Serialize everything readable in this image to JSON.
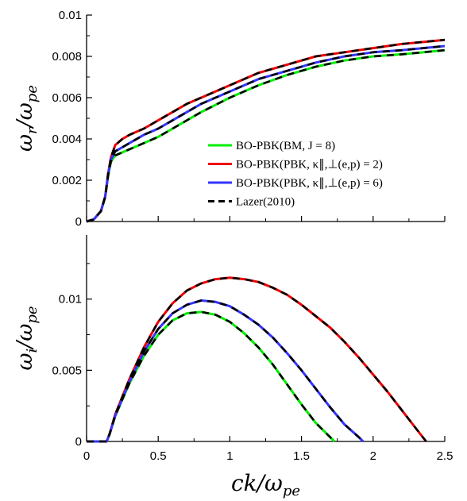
{
  "chart_data": [
    {
      "type": "line",
      "panel": "top",
      "title": "",
      "xlabel": "",
      "ylabel": "ωr/ωpe",
      "xlim": [
        0,
        2.5
      ],
      "ylim": [
        0,
        0.01
      ],
      "x_ticks": [
        0,
        0.5,
        1,
        1.5,
        2,
        2.5
      ],
      "y_ticks": [
        0,
        0.002,
        0.004,
        0.006,
        0.008,
        0.01
      ],
      "y_tick_labels": [
        "0",
        "0.002",
        "0.004",
        "0.006",
        "0.008",
        "0.01"
      ],
      "grid": false,
      "legend_position": "middle-right",
      "series": [
        {
          "name": "BO-PBK(BM, J = 8)",
          "color": "#00ee00",
          "x": [
            0,
            0.05,
            0.1,
            0.13,
            0.15,
            0.17,
            0.2,
            0.25,
            0.3,
            0.4,
            0.5,
            0.6,
            0.7,
            0.8,
            1.0,
            1.2,
            1.4,
            1.6,
            1.8,
            2.0,
            2.2,
            2.5
          ],
          "y": [
            0,
            0.0001,
            0.0005,
            0.0012,
            0.0022,
            0.0029,
            0.0032,
            0.00335,
            0.0035,
            0.0038,
            0.0041,
            0.0045,
            0.0049,
            0.0053,
            0.006,
            0.0066,
            0.0071,
            0.0075,
            0.0078,
            0.008,
            0.0081,
            0.0083
          ]
        },
        {
          "name": "BO-PBK(PBK, κ∥,⊥(e,p) = 2)",
          "color": "#ee0000",
          "x": [
            0,
            0.05,
            0.1,
            0.13,
            0.15,
            0.17,
            0.2,
            0.25,
            0.3,
            0.4,
            0.5,
            0.6,
            0.7,
            0.8,
            1.0,
            1.2,
            1.4,
            1.6,
            1.8,
            2.0,
            2.2,
            2.5
          ],
          "y": [
            0,
            0.0001,
            0.0005,
            0.0012,
            0.0023,
            0.0031,
            0.0037,
            0.004,
            0.0042,
            0.0045,
            0.0049,
            0.0053,
            0.0057,
            0.006,
            0.0066,
            0.0072,
            0.0076,
            0.008,
            0.0082,
            0.0084,
            0.0086,
            0.0088
          ]
        },
        {
          "name": "BO-PBK(PBK, κ∥,⊥(e,p) = 6)",
          "color": "#3333ff",
          "x": [
            0,
            0.05,
            0.1,
            0.13,
            0.15,
            0.17,
            0.2,
            0.25,
            0.3,
            0.4,
            0.5,
            0.6,
            0.7,
            0.8,
            1.0,
            1.2,
            1.4,
            1.6,
            1.8,
            2.0,
            2.2,
            2.5
          ],
          "y": [
            0,
            0.0001,
            0.0005,
            0.0012,
            0.00225,
            0.003,
            0.0034,
            0.0036,
            0.0038,
            0.0042,
            0.0045,
            0.0049,
            0.0053,
            0.0057,
            0.0063,
            0.0069,
            0.0073,
            0.0077,
            0.008,
            0.0082,
            0.0083,
            0.0085
          ]
        }
      ],
      "overlay": {
        "name": "Lazer(2010)",
        "color": "#000000",
        "style": "dashed"
      }
    },
    {
      "type": "line",
      "panel": "bottom",
      "title": "",
      "xlabel": "ck/ωpe",
      "ylabel": "ωi/ωpe",
      "xlim": [
        0,
        2.5
      ],
      "ylim": [
        0,
        0.0145
      ],
      "x_ticks": [
        0,
        0.5,
        1,
        1.5,
        2,
        2.5
      ],
      "x_tick_labels": [
        "0",
        "0.5",
        "1",
        "1.5",
        "2",
        "2.5"
      ],
      "y_ticks": [
        0,
        0.005,
        0.01
      ],
      "y_tick_labels": [
        "0",
        "0.005",
        "0.01"
      ],
      "grid": false,
      "series": [
        {
          "name": "BO-PBK(BM, J = 8)",
          "color": "#00ee00",
          "x": [
            0,
            0.14,
            0.16,
            0.2,
            0.3,
            0.4,
            0.5,
            0.6,
            0.7,
            0.8,
            0.9,
            1.0,
            1.1,
            1.2,
            1.3,
            1.4,
            1.5,
            1.6,
            1.7,
            1.73
          ],
          "y": [
            0,
            0,
            0.0005,
            0.0018,
            0.0041,
            0.006,
            0.0075,
            0.0085,
            0.009,
            0.0091,
            0.0089,
            0.0084,
            0.0076,
            0.0066,
            0.0054,
            0.004,
            0.0026,
            0.0013,
            0.0003,
            0
          ]
        },
        {
          "name": "BO-PBK(PBK, κ∥,⊥(e,p) = 2)",
          "color": "#ee0000",
          "x": [
            0,
            0.14,
            0.16,
            0.2,
            0.3,
            0.4,
            0.5,
            0.6,
            0.7,
            0.8,
            0.9,
            1.0,
            1.1,
            1.2,
            1.3,
            1.4,
            1.5,
            1.6,
            1.7,
            1.8,
            1.9,
            2.0,
            2.1,
            2.2,
            2.3,
            2.37
          ],
          "y": [
            0,
            0,
            0.0005,
            0.0019,
            0.0044,
            0.0066,
            0.0084,
            0.0097,
            0.0106,
            0.0111,
            0.0114,
            0.0115,
            0.0114,
            0.0112,
            0.0108,
            0.0103,
            0.0096,
            0.0088,
            0.008,
            0.007,
            0.0059,
            0.0047,
            0.0035,
            0.0022,
            0.0009,
            0
          ]
        },
        {
          "name": "BO-PBK(PBK, κ∥,⊥(e,p) = 6)",
          "color": "#3333ff",
          "x": [
            0,
            0.14,
            0.16,
            0.2,
            0.3,
            0.4,
            0.5,
            0.6,
            0.7,
            0.8,
            0.9,
            1.0,
            1.1,
            1.2,
            1.3,
            1.4,
            1.5,
            1.6,
            1.7,
            1.8,
            1.9,
            1.93
          ],
          "y": [
            0,
            0,
            0.0005,
            0.0018,
            0.0042,
            0.0063,
            0.0079,
            0.009,
            0.0096,
            0.0099,
            0.0098,
            0.0095,
            0.0089,
            0.0082,
            0.0073,
            0.0062,
            0.005,
            0.0037,
            0.0024,
            0.0012,
            0.0003,
            0
          ]
        }
      ],
      "overlay": {
        "name": "Lazer(2010)",
        "color": "#000000",
        "style": "dashed"
      }
    }
  ],
  "legend": [
    {
      "label": "BO-PBK(BM, J = 8)",
      "color": "#00ee00",
      "style": "solid"
    },
    {
      "label": "BO-PBK(PBK, κ∥,⊥(e,p) = 2)",
      "color": "#ee0000",
      "style": "solid"
    },
    {
      "label": "BO-PBK(PBK, κ∥,⊥(e,p) = 6)",
      "color": "#3333ff",
      "style": "solid"
    },
    {
      "label": "Lazer(2010)",
      "color": "#000000",
      "style": "dashed"
    }
  ]
}
